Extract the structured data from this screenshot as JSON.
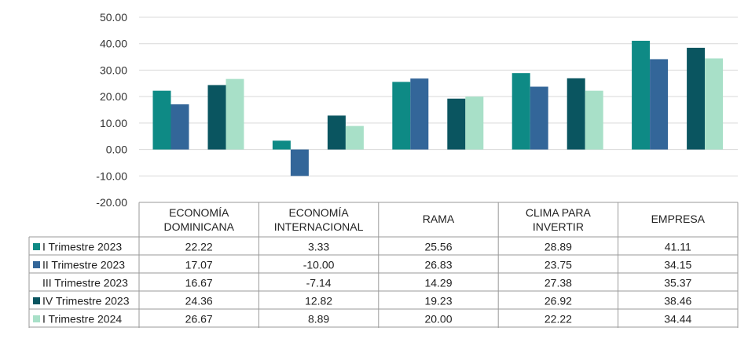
{
  "chart_data": {
    "type": "bar",
    "categories": [
      [
        "ECONOMÍA",
        "DOMINICANA"
      ],
      [
        "ECONOMÍA",
        "INTERNACIONAL"
      ],
      [
        "RAMA"
      ],
      [
        "CLIMA PARA",
        "INVERTIR"
      ],
      [
        "EMPRESA"
      ]
    ],
    "series": [
      {
        "name": "I Trimestre 2023",
        "color": "#0e8a85",
        "values": [
          22.22,
          3.33,
          25.56,
          28.89,
          41.11
        ],
        "show_bar": true
      },
      {
        "name": "II Trimestre 2023",
        "color": "#336699",
        "values": [
          17.07,
          -10.0,
          26.83,
          23.75,
          34.15
        ],
        "show_bar": true
      },
      {
        "name": "III Trimestre 2023",
        "color": "#8fbcd4",
        "values": [
          16.67,
          -7.14,
          14.29,
          27.38,
          35.37
        ],
        "show_bar": false
      },
      {
        "name": "IV Trimestre 2023",
        "color": "#0a5560",
        "values": [
          24.36,
          12.82,
          19.23,
          26.92,
          38.46
        ],
        "show_bar": true
      },
      {
        "name": "I Trimestre 2024",
        "color": "#a8e0c8",
        "values": [
          26.67,
          8.89,
          20.0,
          22.22,
          34.44
        ],
        "show_bar": true
      }
    ],
    "y_ticks": [
      "50.00",
      "40.00",
      "30.00",
      "20.00",
      "10.00",
      "0.00",
      "-10.00",
      "-20.00"
    ],
    "ylim": [
      -20,
      50
    ],
    "grid": true,
    "data_table": true,
    "title": "",
    "xlabel": "",
    "ylabel": ""
  }
}
